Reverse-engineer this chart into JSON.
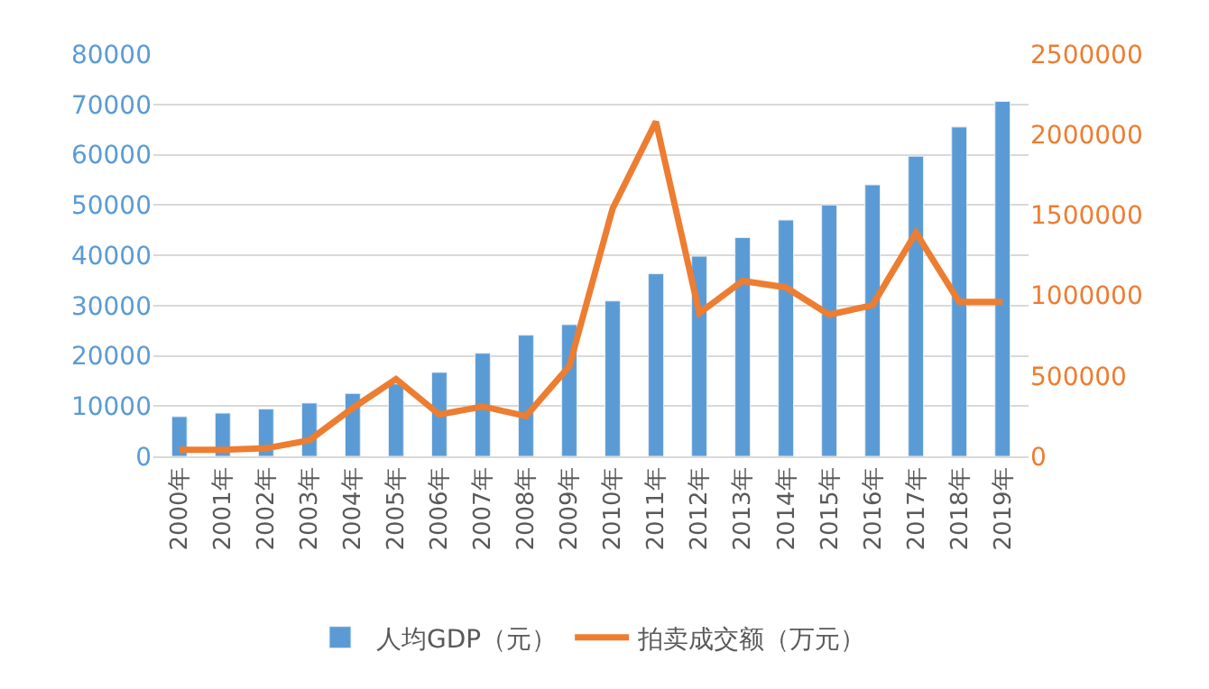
{
  "chart_data": {
    "type": "bar",
    "categories": [
      "2000年",
      "2001年",
      "2002年",
      "2003年",
      "2004年",
      "2005年",
      "2006年",
      "2007年",
      "2008年",
      "2009年",
      "2010年",
      "2011年",
      "2012年",
      "2013年",
      "2014年",
      "2015年",
      "2016年",
      "2017年",
      "2018年",
      "2019年"
    ],
    "series": [
      {
        "name": "人均GDP（元）",
        "color": "#5b9bd5",
        "values": [
          7900,
          8600,
          9400,
          10600,
          12500,
          14400,
          16700,
          20500,
          24100,
          26200,
          30900,
          36300,
          39800,
          43500,
          47000,
          50000,
          54000,
          59700,
          65500,
          70600
        ]
      },
      {
        "name": "拍卖成交额（万元）",
        "color": "#ed7d31",
        "type": "line",
        "axis": "y2",
        "values": [
          40000,
          40000,
          50000,
          100000,
          300000,
          480000,
          260000,
          310000,
          250000,
          560000,
          1540000,
          2080000,
          890000,
          1090000,
          1050000,
          880000,
          940000,
          1390000,
          960000,
          960000
        ]
      }
    ],
    "ylim": [
      0,
      80000
    ],
    "yticks": [
      0,
      10000,
      20000,
      30000,
      40000,
      50000,
      60000,
      70000,
      80000
    ],
    "y2lim": [
      0,
      2500000
    ],
    "y2ticks": [
      0,
      500000,
      1000000,
      1500000,
      2000000,
      2500000
    ],
    "grid": "y",
    "legend": "bottom"
  }
}
